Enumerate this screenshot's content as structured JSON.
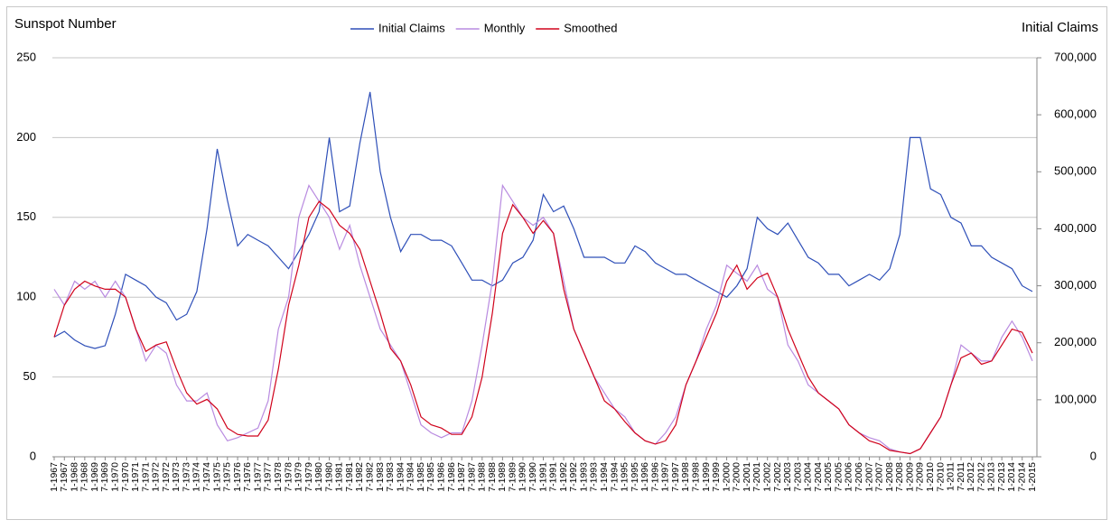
{
  "chart_data": {
    "type": "line",
    "y_label": "Sunspot Number",
    "y2_label": "Initial Claims",
    "categories": [
      "1-1967",
      "7-1967",
      "1-1968",
      "7-1968",
      "1-1969",
      "7-1969",
      "1-1970",
      "7-1970",
      "1-1971",
      "7-1971",
      "1-1972",
      "7-1972",
      "1-1973",
      "7-1973",
      "1-1974",
      "7-1974",
      "1-1975",
      "7-1975",
      "1-1976",
      "7-1976",
      "1-1977",
      "7-1977",
      "1-1978",
      "7-1978",
      "1-1979",
      "7-1979",
      "1-1980",
      "7-1980",
      "1-1981",
      "7-1981",
      "1-1982",
      "7-1982",
      "1-1983",
      "7-1983",
      "1-1984",
      "7-1984",
      "1-1985",
      "7-1985",
      "1-1986",
      "7-1986",
      "1-1987",
      "7-1987",
      "1-1988",
      "7-1988",
      "1-1989",
      "7-1989",
      "1-1990",
      "7-1990",
      "1-1991",
      "7-1991",
      "1-1992",
      "7-1992",
      "1-1993",
      "7-1993",
      "1-1994",
      "7-1994",
      "1-1995",
      "7-1995",
      "1-1996",
      "7-1996",
      "1-1997",
      "7-1997",
      "1-1998",
      "7-1998",
      "1-1999",
      "7-1999",
      "1-2000",
      "7-2000",
      "1-2001",
      "7-2001",
      "1-2002",
      "7-2002",
      "1-2003",
      "7-2003",
      "1-2004",
      "7-2004",
      "1-2005",
      "7-2005",
      "1-2006",
      "7-2006",
      "1-2007",
      "7-2007",
      "1-2008",
      "7-2008",
      "1-2009",
      "7-2009",
      "1-2010",
      "7-2010",
      "1-2011",
      "7-2011",
      "1-2012",
      "7-2012",
      "1-2013",
      "7-2013",
      "1-2014",
      "7-2014",
      "1-2015"
    ],
    "series": [
      {
        "name": "Initial Claims",
        "color": "#2e4fb8",
        "axis": "y2",
        "values": [
          210000,
          220000,
          205000,
          195000,
          190000,
          195000,
          250000,
          320000,
          310000,
          300000,
          280000,
          270000,
          240000,
          250000,
          290000,
          400000,
          540000,
          450000,
          370000,
          390000,
          380000,
          370000,
          350000,
          330000,
          360000,
          390000,
          430000,
          560000,
          430000,
          440000,
          550000,
          640000,
          500000,
          420000,
          360000,
          390000,
          390000,
          380000,
          380000,
          370000,
          340000,
          310000,
          310000,
          300000,
          310000,
          340000,
          350000,
          380000,
          460000,
          430000,
          440000,
          400000,
          350000,
          350000,
          350000,
          340000,
          340000,
          370000,
          360000,
          340000,
          330000,
          320000,
          320000,
          310000,
          300000,
          290000,
          280000,
          300000,
          330000,
          420000,
          400000,
          390000,
          410000,
          380000,
          350000,
          340000,
          320000,
          320000,
          300000,
          310000,
          320000,
          310000,
          330000,
          390000,
          560000,
          560000,
          470000,
          460000,
          420000,
          410000,
          370000,
          370000,
          350000,
          340000,
          330000,
          300000,
          290000
        ]
      },
      {
        "name": "Monthly",
        "color": "#b98be0",
        "values": [
          105,
          95,
          110,
          105,
          110,
          100,
          110,
          100,
          80,
          60,
          70,
          65,
          45,
          35,
          35,
          40,
          20,
          10,
          12,
          15,
          18,
          35,
          80,
          100,
          150,
          170,
          160,
          150,
          130,
          145,
          120,
          100,
          80,
          70,
          60,
          40,
          20,
          15,
          12,
          15,
          15,
          35,
          70,
          110,
          170,
          160,
          150,
          145,
          150,
          140,
          110,
          80,
          65,
          50,
          40,
          30,
          25,
          15,
          10,
          8,
          15,
          25,
          45,
          60,
          80,
          95,
          120,
          115,
          110,
          120,
          105,
          100,
          70,
          60,
          45,
          40,
          35,
          30,
          20,
          15,
          12,
          10,
          5,
          3,
          2,
          5,
          15,
          25,
          45,
          70,
          65,
          60,
          60,
          75,
          85,
          75,
          60
        ]
      },
      {
        "name": "Smoothed",
        "color": "#d0021b",
        "values": [
          75,
          95,
          105,
          110,
          107,
          105,
          105,
          100,
          80,
          66,
          70,
          72,
          55,
          40,
          33,
          36,
          30,
          18,
          14,
          13,
          13,
          23,
          55,
          95,
          120,
          150,
          160,
          155,
          145,
          140,
          130,
          110,
          90,
          68,
          60,
          45,
          25,
          20,
          18,
          14,
          14,
          25,
          50,
          90,
          140,
          158,
          150,
          140,
          148,
          140,
          105,
          80,
          65,
          50,
          35,
          30,
          22,
          15,
          10,
          8,
          10,
          20,
          45,
          60,
          75,
          90,
          110,
          120,
          105,
          112,
          115,
          100,
          80,
          65,
          50,
          40,
          35,
          30,
          20,
          15,
          10,
          8,
          4,
          3,
          2,
          5,
          15,
          25,
          45,
          62,
          65,
          58,
          60,
          70,
          80,
          78,
          65
        ]
      }
    ],
    "ylim": [
      0,
      250
    ],
    "yticks": [
      0,
      50,
      100,
      150,
      200,
      250
    ],
    "y2lim": [
      0,
      700000
    ],
    "y2ticks": [
      0,
      {
        "value": 100000,
        "label": "100,000"
      },
      {
        "value": 200000,
        "label": "200,000"
      },
      {
        "value": 300000,
        "label": "300,000"
      },
      {
        "value": 400000,
        "label": "400,000"
      },
      {
        "value": 500000,
        "label": "500,000"
      },
      {
        "value": 600000,
        "label": "600,000"
      },
      {
        "value": 700000,
        "label": "700,000"
      }
    ],
    "grid": true,
    "legend": "top"
  }
}
